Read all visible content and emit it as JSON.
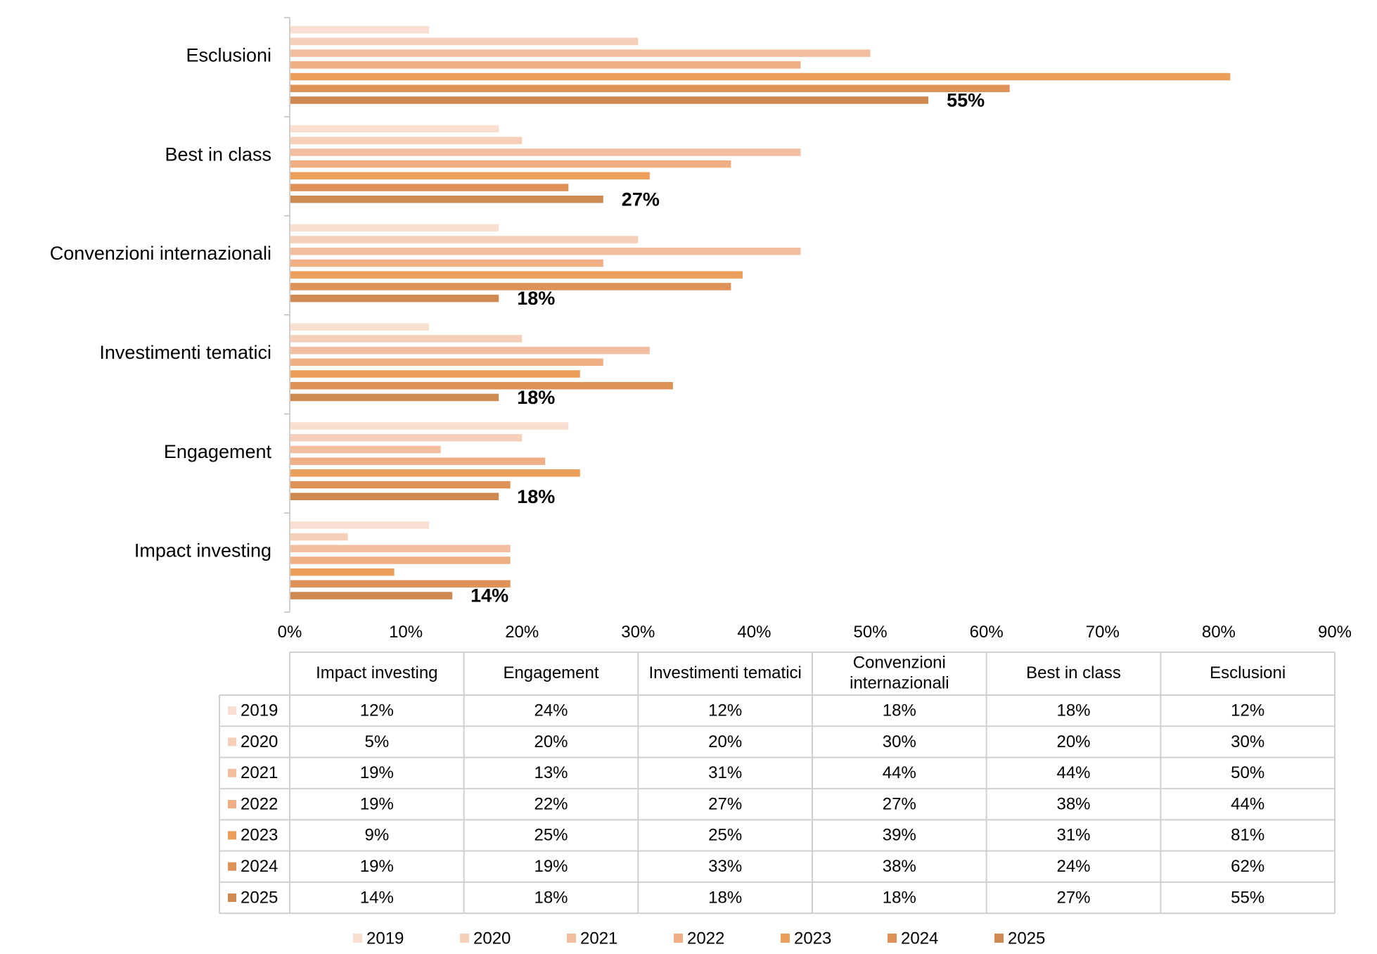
{
  "chart_data": {
    "type": "bar",
    "orientation": "horizontal",
    "categories_top_to_bottom": [
      "Esclusioni",
      "Best in class",
      "Convenzioni internazionali",
      "Investimenti tematici",
      "Engagement",
      "Impact investing"
    ],
    "table_columns": [
      "Impact investing",
      "Engagement",
      "Investimenti tematici",
      "Convenzioni internazionali",
      "Best in class",
      "Esclusioni"
    ],
    "series": [
      {
        "name": "2019",
        "color": "#F8DFD1",
        "values": [
          12,
          24,
          12,
          18,
          18,
          12
        ]
      },
      {
        "name": "2020",
        "color": "#F5CFB9",
        "values": [
          5,
          20,
          20,
          30,
          20,
          30
        ]
      },
      {
        "name": "2021",
        "color": "#F2BE9F",
        "values": [
          19,
          13,
          31,
          44,
          44,
          50
        ]
      },
      {
        "name": "2022",
        "color": "#EFAE84",
        "values": [
          19,
          22,
          27,
          27,
          38,
          44
        ]
      },
      {
        "name": "2023",
        "color": "#EC9F5A",
        "values": [
          9,
          25,
          25,
          39,
          31,
          81
        ]
      },
      {
        "name": "2024",
        "color": "#DE9257",
        "values": [
          19,
          19,
          33,
          38,
          24,
          62
        ]
      },
      {
        "name": "2025",
        "color": "#CE8A50",
        "values": [
          14,
          18,
          18,
          18,
          27,
          55
        ]
      }
    ],
    "data_labels_series": "2025",
    "value_unit": "%",
    "xlim": [
      0,
      90
    ],
    "x_ticks": [
      "0%",
      "10%",
      "20%",
      "30%",
      "40%",
      "50%",
      "60%",
      "70%",
      "80%",
      "90%"
    ],
    "grid": false,
    "legend_position": "bottom",
    "has_data_table": true
  }
}
